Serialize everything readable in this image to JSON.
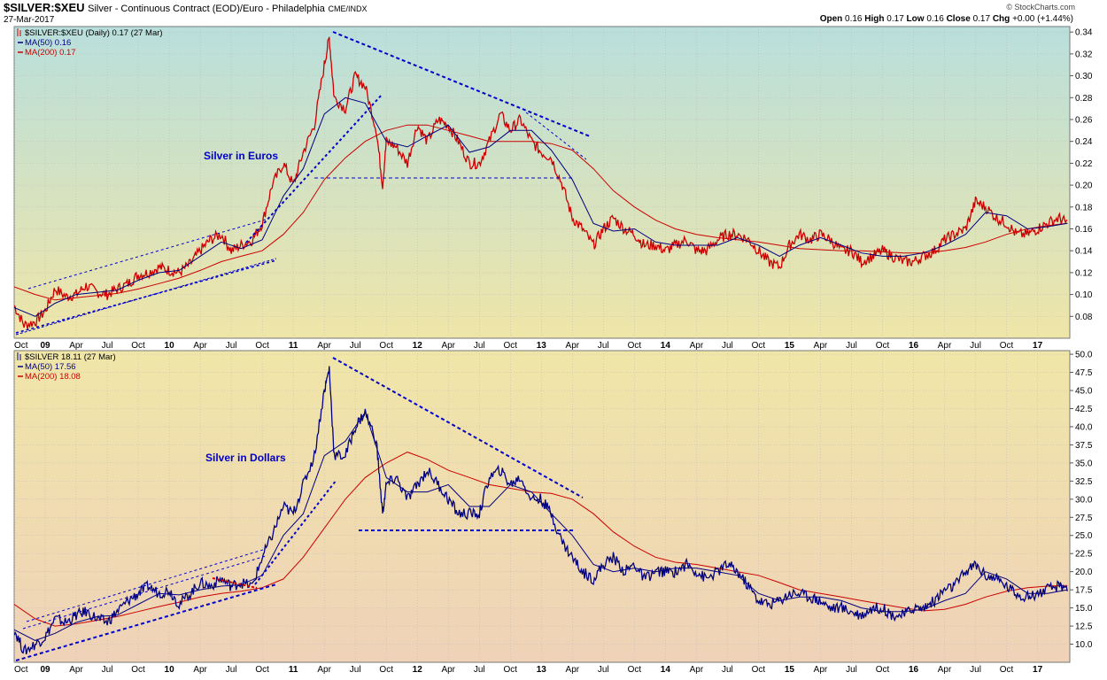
{
  "header": {
    "symbol": "$SILVER:$XEU",
    "description": "Silver - Continuous Contract (EOD)/Euro - Philadelphia",
    "exchange": "CME/INDX",
    "date": "27-Mar-2017",
    "copyright": "© StockCharts.com",
    "quote": {
      "open_label": "Open",
      "open": "0.16",
      "high_label": "High",
      "high": "0.17",
      "low_label": "Low",
      "low": "0.16",
      "close_label": "Close",
      "close": "0.17",
      "chg_label": "Chg",
      "chg": "+0.00 (+1.44%)"
    }
  },
  "colors": {
    "price_euro": "#cc0000",
    "price_usd": "#000080",
    "ma50": "#000080",
    "ma200": "#cc0000",
    "annotation": "#0000cc"
  },
  "chart_data": [
    {
      "type": "line",
      "title": "Silver in Euros",
      "legend": [
        "$SILVER:$XEU (Daily) 0.17 (27 Mar)",
        "MA(50) 0.16",
        "MA(200) 0.17"
      ],
      "x_tick_labels": [
        "Oct",
        "09",
        "Apr",
        "Jul",
        "Oct",
        "10",
        "Apr",
        "Jul",
        "Oct",
        "11",
        "Apr",
        "Jul",
        "Oct",
        "12",
        "Apr",
        "Jul",
        "Oct",
        "13",
        "Apr",
        "Jul",
        "Oct",
        "14",
        "Apr",
        "Jul",
        "Oct",
        "15",
        "Apr",
        "Jul",
        "Oct",
        "16",
        "Apr",
        "Jul",
        "Oct",
        "17"
      ],
      "xlim": [
        2008.75,
        2017.26
      ],
      "ylim": [
        0.06,
        0.345
      ],
      "y_ticks": [
        0.08,
        0.1,
        0.12,
        0.14,
        0.16,
        0.18,
        0.2,
        0.22,
        0.24,
        0.26,
        0.28,
        0.3,
        0.32,
        0.34
      ],
      "grid": true,
      "series": [
        {
          "name": "$SILVER:$XEU",
          "x": [
            2008.75,
            2008.83,
            2008.92,
            2009.0,
            2009.08,
            2009.17,
            2009.25,
            2009.33,
            2009.42,
            2009.5,
            2009.58,
            2009.67,
            2009.75,
            2009.83,
            2009.92,
            2010.0,
            2010.08,
            2010.17,
            2010.25,
            2010.33,
            2010.42,
            2010.5,
            2010.58,
            2010.67,
            2010.75,
            2010.83,
            2010.92,
            2011.0,
            2011.08,
            2011.17,
            2011.25,
            2011.29,
            2011.33,
            2011.42,
            2011.5,
            2011.58,
            2011.67,
            2011.72,
            2011.75,
            2011.83,
            2011.92,
            2012.0,
            2012.08,
            2012.17,
            2012.25,
            2012.33,
            2012.42,
            2012.5,
            2012.58,
            2012.67,
            2012.75,
            2012.83,
            2012.92,
            2013.0,
            2013.08,
            2013.17,
            2013.25,
            2013.33,
            2013.42,
            2013.5,
            2013.58,
            2013.67,
            2013.75,
            2013.83,
            2013.92,
            2014.0,
            2014.08,
            2014.17,
            2014.25,
            2014.33,
            2014.42,
            2014.5,
            2014.58,
            2014.67,
            2014.75,
            2014.83,
            2014.92,
            2015.0,
            2015.08,
            2015.17,
            2015.25,
            2015.33,
            2015.42,
            2015.5,
            2015.58,
            2015.67,
            2015.75,
            2015.83,
            2015.92,
            2016.0,
            2016.08,
            2016.17,
            2016.25,
            2016.33,
            2016.42,
            2016.5,
            2016.58,
            2016.67,
            2016.75,
            2016.83,
            2016.92,
            2017.0,
            2017.08,
            2017.17,
            2017.24
          ],
          "values": [
            0.09,
            0.072,
            0.075,
            0.085,
            0.105,
            0.098,
            0.1,
            0.108,
            0.102,
            0.1,
            0.105,
            0.11,
            0.118,
            0.12,
            0.125,
            0.122,
            0.12,
            0.128,
            0.14,
            0.15,
            0.155,
            0.14,
            0.145,
            0.15,
            0.165,
            0.2,
            0.22,
            0.2,
            0.23,
            0.255,
            0.31,
            0.335,
            0.28,
            0.27,
            0.3,
            0.29,
            0.25,
            0.2,
            0.24,
            0.235,
            0.22,
            0.255,
            0.24,
            0.26,
            0.255,
            0.24,
            0.22,
            0.22,
            0.24,
            0.265,
            0.25,
            0.26,
            0.24,
            0.23,
            0.225,
            0.2,
            0.17,
            0.16,
            0.145,
            0.16,
            0.17,
            0.16,
            0.155,
            0.145,
            0.145,
            0.14,
            0.145,
            0.15,
            0.14,
            0.14,
            0.15,
            0.155,
            0.155,
            0.15,
            0.14,
            0.13,
            0.125,
            0.145,
            0.155,
            0.15,
            0.155,
            0.15,
            0.14,
            0.14,
            0.13,
            0.135,
            0.14,
            0.135,
            0.13,
            0.13,
            0.135,
            0.14,
            0.15,
            0.155,
            0.16,
            0.185,
            0.18,
            0.17,
            0.165,
            0.155,
            0.155,
            0.16,
            0.165,
            0.17,
            0.165
          ]
        },
        {
          "name": "MA(50)",
          "x": [
            2008.75,
            2008.92,
            2009.08,
            2009.25,
            2009.42,
            2009.58,
            2009.75,
            2009.92,
            2010.08,
            2010.25,
            2010.42,
            2010.58,
            2010.75,
            2010.92,
            2011.08,
            2011.25,
            2011.42,
            2011.58,
            2011.75,
            2011.92,
            2012.08,
            2012.25,
            2012.42,
            2012.58,
            2012.75,
            2012.92,
            2013.08,
            2013.25,
            2013.42,
            2013.58,
            2013.75,
            2013.92,
            2014.08,
            2014.25,
            2014.42,
            2014.58,
            2014.75,
            2014.92,
            2015.08,
            2015.25,
            2015.42,
            2015.58,
            2015.75,
            2015.92,
            2016.08,
            2016.25,
            2016.42,
            2016.58,
            2016.75,
            2016.92,
            2017.08,
            2017.24
          ],
          "values": [
            0.088,
            0.08,
            0.092,
            0.1,
            0.102,
            0.104,
            0.113,
            0.12,
            0.122,
            0.135,
            0.148,
            0.142,
            0.15,
            0.19,
            0.215,
            0.265,
            0.28,
            0.275,
            0.24,
            0.235,
            0.245,
            0.255,
            0.23,
            0.235,
            0.25,
            0.25,
            0.232,
            0.205,
            0.165,
            0.158,
            0.16,
            0.148,
            0.145,
            0.145,
            0.145,
            0.152,
            0.145,
            0.135,
            0.145,
            0.152,
            0.145,
            0.138,
            0.135,
            0.135,
            0.138,
            0.145,
            0.155,
            0.175,
            0.172,
            0.16,
            0.162,
            0.165
          ]
        },
        {
          "name": "MA(200)",
          "x": [
            2008.75,
            2008.92,
            2009.08,
            2009.25,
            2009.42,
            2009.58,
            2009.75,
            2009.92,
            2010.08,
            2010.25,
            2010.42,
            2010.58,
            2010.75,
            2010.92,
            2011.08,
            2011.25,
            2011.42,
            2011.58,
            2011.75,
            2011.92,
            2012.08,
            2012.25,
            2012.42,
            2012.58,
            2012.75,
            2012.92,
            2013.08,
            2013.25,
            2013.42,
            2013.58,
            2013.75,
            2013.92,
            2014.08,
            2014.25,
            2014.42,
            2014.58,
            2014.75,
            2014.92,
            2015.08,
            2015.25,
            2015.42,
            2015.58,
            2015.75,
            2015.92,
            2016.08,
            2016.25,
            2016.42,
            2016.58,
            2016.75,
            2016.92,
            2017.08,
            2017.24
          ],
          "values": [
            0.107,
            0.1,
            0.095,
            0.097,
            0.099,
            0.101,
            0.105,
            0.11,
            0.115,
            0.122,
            0.13,
            0.135,
            0.14,
            0.155,
            0.175,
            0.205,
            0.225,
            0.24,
            0.25,
            0.255,
            0.255,
            0.25,
            0.245,
            0.24,
            0.24,
            0.24,
            0.238,
            0.232,
            0.215,
            0.195,
            0.18,
            0.168,
            0.16,
            0.155,
            0.152,
            0.15,
            0.148,
            0.145,
            0.142,
            0.141,
            0.14,
            0.14,
            0.139,
            0.138,
            0.138,
            0.14,
            0.143,
            0.148,
            0.155,
            0.16,
            0.163,
            0.165
          ]
        }
      ]
    },
    {
      "type": "line",
      "title": "Silver in Dollars",
      "legend": [
        "$SILVER 18.11 (27 Mar)",
        "MA(50) 17.56",
        "MA(200) 18.08"
      ],
      "x_tick_labels": [
        "Oct",
        "09",
        "Apr",
        "Jul",
        "Oct",
        "10",
        "Apr",
        "Jul",
        "Oct",
        "11",
        "Apr",
        "Jul",
        "Oct",
        "12",
        "Apr",
        "Jul",
        "Oct",
        "13",
        "Apr",
        "Jul",
        "Oct",
        "14",
        "Apr",
        "Jul",
        "Oct",
        "15",
        "Apr",
        "Jul",
        "Oct",
        "16",
        "Apr",
        "Jul",
        "Oct",
        "17"
      ],
      "xlim": [
        2008.75,
        2017.26
      ],
      "ylim": [
        7.5,
        50.5
      ],
      "y_ticks": [
        10.0,
        12.5,
        15.0,
        17.5,
        20.0,
        22.5,
        25.0,
        27.5,
        30.0,
        32.5,
        35.0,
        37.5,
        40.0,
        42.5,
        45.0,
        47.5,
        50.0
      ],
      "grid": true,
      "series": [
        {
          "name": "$SILVER",
          "x": [
            2008.75,
            2008.83,
            2008.92,
            2009.0,
            2009.08,
            2009.17,
            2009.25,
            2009.33,
            2009.42,
            2009.5,
            2009.58,
            2009.67,
            2009.75,
            2009.83,
            2009.92,
            2010.0,
            2010.08,
            2010.17,
            2010.25,
            2010.33,
            2010.42,
            2010.5,
            2010.58,
            2010.67,
            2010.75,
            2010.83,
            2010.92,
            2011.0,
            2011.08,
            2011.17,
            2011.25,
            2011.29,
            2011.33,
            2011.42,
            2011.5,
            2011.58,
            2011.67,
            2011.72,
            2011.75,
            2011.83,
            2011.92,
            2012.0,
            2012.08,
            2012.17,
            2012.25,
            2012.33,
            2012.42,
            2012.5,
            2012.58,
            2012.67,
            2012.75,
            2012.83,
            2012.92,
            2013.0,
            2013.08,
            2013.17,
            2013.25,
            2013.33,
            2013.42,
            2013.5,
            2013.58,
            2013.67,
            2013.75,
            2013.83,
            2013.92,
            2014.0,
            2014.08,
            2014.17,
            2014.25,
            2014.33,
            2014.42,
            2014.5,
            2014.58,
            2014.67,
            2014.75,
            2014.83,
            2014.92,
            2015.0,
            2015.08,
            2015.17,
            2015.25,
            2015.33,
            2015.42,
            2015.5,
            2015.58,
            2015.67,
            2015.75,
            2015.83,
            2015.92,
            2016.0,
            2016.08,
            2016.17,
            2016.25,
            2016.33,
            2016.42,
            2016.5,
            2016.58,
            2016.67,
            2016.75,
            2016.83,
            2016.92,
            2017.0,
            2017.08,
            2017.17,
            2017.24
          ],
          "values": [
            12,
            9,
            10,
            11,
            13.5,
            13,
            14,
            14.5,
            13.5,
            13,
            14.5,
            16,
            17,
            18,
            17,
            17.5,
            15.5,
            17,
            18.5,
            18,
            19,
            18,
            18.5,
            18,
            22,
            25,
            29,
            28,
            32,
            36,
            45,
            48,
            36,
            36,
            40,
            42,
            38,
            28,
            32,
            33,
            30,
            32,
            34,
            32,
            30,
            28,
            28,
            28,
            33,
            34,
            32,
            33,
            30,
            30,
            28,
            24,
            22,
            20,
            19,
            21,
            22,
            20,
            21,
            19,
            20,
            20,
            20,
            21,
            20,
            19,
            20,
            21,
            20,
            18,
            16,
            15.5,
            16,
            17,
            17,
            16.5,
            16,
            15,
            15,
            14.5,
            14,
            15,
            15,
            14,
            14,
            15,
            15,
            16,
            17.5,
            18,
            20,
            21,
            19.5,
            19,
            18,
            17,
            16.5,
            17,
            17.5,
            18,
            18
          ]
        },
        {
          "name": "MA(50)",
          "x": [
            2008.75,
            2008.92,
            2009.08,
            2009.25,
            2009.42,
            2009.58,
            2009.75,
            2009.92,
            2010.08,
            2010.25,
            2010.42,
            2010.58,
            2010.75,
            2010.92,
            2011.08,
            2011.25,
            2011.42,
            2011.58,
            2011.75,
            2011.92,
            2012.08,
            2012.25,
            2012.42,
            2012.58,
            2012.75,
            2012.92,
            2013.08,
            2013.25,
            2013.42,
            2013.58,
            2013.75,
            2013.92,
            2014.08,
            2014.25,
            2014.42,
            2014.58,
            2014.75,
            2014.92,
            2015.08,
            2015.25,
            2015.42,
            2015.58,
            2015.75,
            2015.92,
            2016.08,
            2016.25,
            2016.42,
            2016.58,
            2016.75,
            2016.92,
            2017.08,
            2017.24
          ],
          "values": [
            12,
            10.5,
            11.5,
            13,
            13.8,
            14,
            15.5,
            17,
            16.8,
            17.5,
            18,
            18.2,
            19.5,
            25,
            28,
            36,
            38,
            42,
            33,
            31,
            31,
            32,
            29,
            29,
            32,
            31,
            28,
            25,
            21,
            20,
            20.5,
            20,
            20.5,
            20.5,
            20,
            19.5,
            17,
            16,
            16.5,
            16.5,
            16,
            15,
            14.5,
            14.5,
            14.8,
            16,
            17,
            20,
            19,
            17,
            17,
            17.5
          ]
        },
        {
          "name": "MA(200)",
          "x": [
            2008.75,
            2008.92,
            2009.08,
            2009.25,
            2009.42,
            2009.58,
            2009.75,
            2009.92,
            2010.08,
            2010.25,
            2010.42,
            2010.58,
            2010.75,
            2010.92,
            2011.08,
            2011.25,
            2011.42,
            2011.58,
            2011.75,
            2011.92,
            2012.08,
            2012.25,
            2012.42,
            2012.58,
            2012.75,
            2012.92,
            2013.08,
            2013.25,
            2013.42,
            2013.58,
            2013.75,
            2013.92,
            2014.08,
            2014.25,
            2014.42,
            2014.58,
            2014.75,
            2014.92,
            2015.08,
            2015.25,
            2015.42,
            2015.58,
            2015.75,
            2015.92,
            2016.08,
            2016.25,
            2016.42,
            2016.58,
            2016.75,
            2016.92,
            2017.08,
            2017.24
          ],
          "values": [
            15.5,
            13.5,
            12.5,
            12.8,
            13.3,
            13.8,
            14.5,
            15.2,
            15.8,
            16.5,
            17,
            17.3,
            17.8,
            19,
            22,
            26,
            30,
            33,
            35,
            36.5,
            35.5,
            34,
            33,
            32,
            31.5,
            31,
            30.8,
            30,
            28,
            25.5,
            23.5,
            22,
            21.3,
            21,
            20.5,
            20,
            19.5,
            18.5,
            17.5,
            17,
            16.5,
            16,
            15.5,
            15,
            14.6,
            14.8,
            15.5,
            16.5,
            17.3,
            17.8,
            18,
            18.1
          ]
        }
      ]
    }
  ]
}
